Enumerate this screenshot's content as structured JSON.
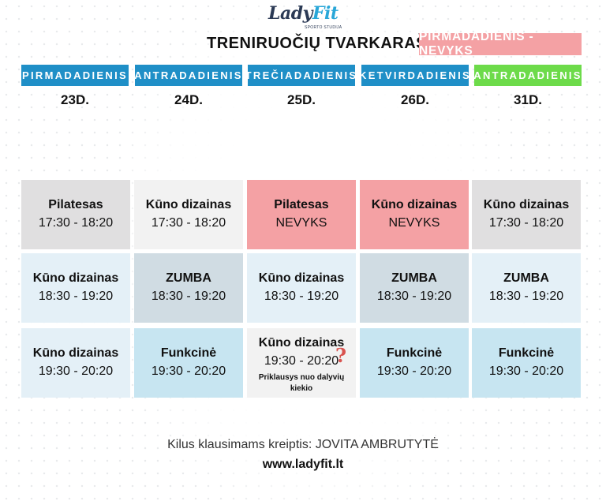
{
  "logo": {
    "text_main": "Lady",
    "text_accent": "Fit",
    "tagline": "SPORTO STUDIJA"
  },
  "title": "TRENIRUOČIŲ TVARKARAŠTIS",
  "notice": "PIRMADADIENIS - NEVYKS",
  "days": [
    {
      "label": "PIRMADADIENIS",
      "date": "23D."
    },
    {
      "label": "ANTRADADIENIS",
      "date": "24D."
    },
    {
      "label": "TREČIADADIENIS",
      "date": "25D."
    },
    {
      "label": "KETVIRDADIENIS",
      "date": "26D."
    },
    {
      "label": "ANTRADADIENIS",
      "date": "31D."
    }
  ],
  "rows": [
    [
      {
        "name": "Pilatesas",
        "time": "17:30 - 18:20"
      },
      {
        "name": "Kūno dizainas",
        "time": "17:30 - 18:20"
      },
      {
        "name": "Pilatesas",
        "time": "NEVYKS"
      },
      {
        "name": "Kūno dizainas",
        "time": "NEVYKS"
      },
      {
        "name": "Kūno dizainas",
        "time": "17:30 - 18:20"
      }
    ],
    [
      {
        "name": "Kūno dizainas",
        "time": "18:30 - 19:20"
      },
      {
        "name": "ZUMBA",
        "time": "18:30 - 19:20"
      },
      {
        "name": "Kūno dizainas",
        "time": "18:30 - 19:20"
      },
      {
        "name": "ZUMBA",
        "time": "18:30 - 19:20"
      },
      {
        "name": "ZUMBA",
        "time": "18:30 - 19:20"
      }
    ],
    [
      {
        "name": "Kūno dizainas",
        "time": "19:30 - 20:20"
      },
      {
        "name": "Funkcinė",
        "time": "19:30 - 20:20"
      },
      {
        "name": "Kūno dizainas",
        "time": "19:30 - 20:20",
        "note": "Priklausys nuo dalyvių kiekio",
        "mark": "?"
      },
      {
        "name": "Funkcinė",
        "time": "19:30 - 20:20"
      },
      {
        "name": "Funkcinė",
        "time": "19:30 - 20:20"
      }
    ]
  ],
  "footer": {
    "contact": "Kilus klausimams kreiptis: JOVITA AMBRUTYTĖ",
    "url": "www.ladyfit.lt"
  },
  "colors": {
    "header_blue": "#1f8fc7",
    "header_green": "#6ddb4a",
    "notice_pink": "#f4a1a4",
    "cancelled_pink": "#f4a1a4",
    "gray": "#e0dfe0",
    "light_gray": "#f2f2f2",
    "light_blue": "#e4f0f7",
    "slate": "#d0dce3",
    "sky": "#c7e5f1"
  }
}
